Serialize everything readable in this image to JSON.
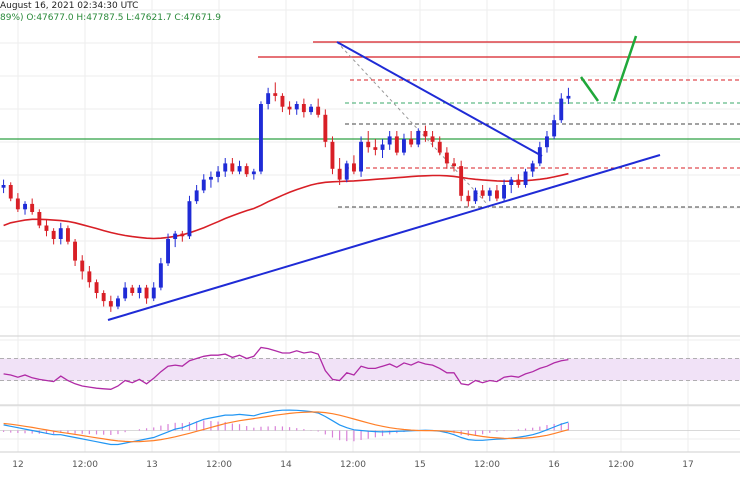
{
  "header": {
    "timestamp": "August 16, 2021 02:34:30 UTC",
    "ohlc": "89%) O:47677.0 H:47787.5 L:47621.7 C:47671.9"
  },
  "colors": {
    "up": "#1f2bd6",
    "down": "#d81f26",
    "ma": "#d81f26",
    "trendline": "#1f2bd6",
    "green_line": "#2ea043",
    "rsi": "#b02aa6",
    "rsi_band": "#f1e2f7",
    "macd": "#2196f3",
    "signal": "#ff7f27",
    "hist": "#d881d8",
    "projection": "#1fa83a"
  },
  "chart_data": {
    "type": "candlestick",
    "x_ticks": [
      "12",
      "12:00",
      "13",
      "12:00",
      "14",
      "12:00",
      "15",
      "12:00",
      "16",
      "12:00",
      "17"
    ],
    "candles": [
      [
        49,
        52,
        47,
        50
      ],
      [
        50,
        51,
        44,
        45
      ],
      [
        45,
        47,
        40,
        41
      ],
      [
        41,
        44,
        39,
        43
      ],
      [
        43,
        45,
        39,
        40
      ],
      [
        40,
        41,
        34,
        35
      ],
      [
        35,
        37,
        31,
        33
      ],
      [
        33,
        34,
        28,
        30
      ],
      [
        30,
        36,
        28,
        34
      ],
      [
        34,
        35,
        28,
        29
      ],
      [
        29,
        30,
        20,
        22
      ],
      [
        22,
        24,
        15,
        18
      ],
      [
        18,
        20,
        12,
        14
      ],
      [
        14,
        15,
        8,
        10
      ],
      [
        10,
        11,
        5,
        7
      ],
      [
        7,
        9,
        3,
        5
      ],
      [
        5,
        9,
        4,
        8
      ],
      [
        8,
        14,
        7,
        12
      ],
      [
        12,
        13,
        9,
        10
      ],
      [
        10,
        13,
        8,
        12
      ],
      [
        12,
        13,
        6,
        8
      ],
      [
        8,
        14,
        7,
        12
      ],
      [
        12,
        23,
        11,
        21
      ],
      [
        21,
        32,
        20,
        30
      ],
      [
        30,
        33,
        27,
        32
      ],
      [
        32,
        33,
        29,
        31
      ],
      [
        31,
        46,
        30,
        44
      ],
      [
        44,
        50,
        43,
        48
      ],
      [
        48,
        54,
        47,
        52
      ],
      [
        52,
        55,
        49,
        53
      ],
      [
        53,
        57,
        51,
        55
      ],
      [
        55,
        60,
        53,
        58
      ],
      [
        58,
        60,
        54,
        55
      ],
      [
        55,
        59,
        54,
        57
      ],
      [
        57,
        58,
        53,
        54
      ],
      [
        54,
        56,
        52,
        55
      ],
      [
        55,
        81,
        54,
        80
      ],
      [
        80,
        86,
        78,
        84
      ],
      [
        84,
        88,
        81,
        83
      ],
      [
        83,
        84,
        77,
        79
      ],
      [
        79,
        81,
        76,
        78
      ],
      [
        78,
        81,
        76,
        80
      ],
      [
        80,
        82,
        75,
        77
      ],
      [
        77,
        80,
        76,
        79
      ],
      [
        79,
        82,
        75,
        76
      ],
      [
        76,
        78,
        64,
        66
      ],
      [
        66,
        68,
        54,
        56
      ],
      [
        56,
        60,
        50,
        52
      ],
      [
        52,
        59,
        51,
        58
      ],
      [
        58,
        61,
        54,
        55
      ],
      [
        55,
        68,
        53,
        66
      ],
      [
        66,
        70,
        62,
        64
      ],
      [
        64,
        67,
        61,
        63
      ],
      [
        63,
        67,
        60,
        65
      ],
      [
        65,
        70,
        63,
        68
      ],
      [
        68,
        70,
        61,
        62
      ],
      [
        62,
        69,
        61,
        67
      ],
      [
        67,
        70,
        64,
        65
      ],
      [
        65,
        71,
        64,
        70
      ],
      [
        70,
        72,
        66,
        68
      ],
      [
        68,
        70,
        64,
        66
      ],
      [
        66,
        68,
        61,
        62
      ],
      [
        62,
        64,
        56,
        58
      ],
      [
        58,
        60,
        55,
        57
      ],
      [
        57,
        59,
        44,
        46
      ],
      [
        46,
        48,
        42,
        44
      ],
      [
        44,
        49,
        43,
        48
      ],
      [
        48,
        50,
        45,
        46
      ],
      [
        46,
        49,
        44,
        48
      ],
      [
        48,
        50,
        44,
        45
      ],
      [
        45,
        52,
        44,
        50
      ],
      [
        50,
        53,
        47,
        52
      ],
      [
        52,
        54,
        49,
        50
      ],
      [
        50,
        56,
        49,
        55
      ],
      [
        55,
        59,
        53,
        58
      ],
      [
        58,
        66,
        57,
        64
      ],
      [
        64,
        70,
        62,
        68
      ],
      [
        68,
        76,
        67,
        74
      ],
      [
        74,
        84,
        73,
        82
      ],
      [
        82,
        86,
        80,
        83
      ]
    ],
    "ma": [
      35,
      36,
      36.5,
      37,
      37.3,
      37.3,
      37.2,
      37,
      36.8,
      36.5,
      36,
      35.3,
      34.6,
      33.9,
      33.1,
      32.4,
      31.8,
      31.3,
      30.9,
      30.6,
      30.3,
      30.2,
      30.3,
      30.6,
      31,
      31.5,
      32.3,
      33.2,
      34.2,
      35.3,
      36.4,
      37.6,
      38.6,
      39.6,
      40.5,
      41.3,
      42.5,
      43.8,
      45,
      46.2,
      47.3,
      48.3,
      49.2,
      50,
      50.6,
      51,
      51.2,
      51.3,
      51.4,
      51.5,
      51.7,
      51.9,
      52.1,
      52.3,
      52.5,
      52.7,
      52.9,
      53.1,
      53.3,
      53.4,
      53.5,
      53.5,
      53.4,
      53.2,
      52.8,
      52.4,
      52.1,
      51.9,
      51.7,
      51.5,
      51.4,
      51.4,
      51.5,
      51.6,
      51.8,
      52.1,
      52.5,
      53,
      53.6,
      54.2
    ],
    "rsi": [
      42,
      40,
      36,
      40,
      35,
      32,
      30,
      28,
      38,
      30,
      24,
      20,
      18,
      16,
      15,
      14,
      20,
      30,
      26,
      32,
      24,
      34,
      46,
      56,
      58,
      56,
      66,
      70,
      74,
      76,
      76,
      78,
      72,
      76,
      70,
      74,
      90,
      88,
      84,
      80,
      80,
      84,
      80,
      82,
      78,
      48,
      32,
      30,
      44,
      40,
      56,
      52,
      52,
      56,
      60,
      54,
      62,
      58,
      64,
      60,
      58,
      52,
      44,
      44,
      24,
      22,
      30,
      26,
      30,
      28,
      36,
      38,
      36,
      42,
      46,
      52,
      56,
      62,
      66,
      68
    ],
    "macd": [
      4,
      3,
      2,
      1,
      0,
      -1,
      -2,
      -3,
      -3,
      -4,
      -5,
      -6,
      -7,
      -8,
      -9,
      -10,
      -10,
      -9,
      -8,
      -7,
      -6,
      -5,
      -3,
      -1,
      1,
      2,
      4,
      6,
      8,
      9,
      10,
      11,
      11,
      11.5,
      11,
      10.5,
      12,
      13,
      14,
      14.5,
      14.6,
      14.4,
      14,
      13.5,
      12.5,
      10,
      7,
      4,
      2,
      0.5,
      0,
      -0.5,
      -0.8,
      -1,
      -0.8,
      -0.6,
      -0.4,
      -0.2,
      0,
      0.2,
      0,
      -0.5,
      -1.5,
      -3,
      -5,
      -6.5,
      -7,
      -7,
      -6.6,
      -6.2,
      -6,
      -5.5,
      -4.8,
      -4,
      -3,
      -1.5,
      0.5,
      2.5,
      4.5,
      6
    ],
    "signal": [
      5,
      4.5,
      3.8,
      3,
      2.2,
      1.3,
      0.4,
      -0.5,
      -1.3,
      -2,
      -2.8,
      -3.6,
      -4.4,
      -5.2,
      -6,
      -6.8,
      -7.4,
      -7.8,
      -8,
      -7.9,
      -7.6,
      -7.2,
      -6.5,
      -5.6,
      -4.5,
      -3.3,
      -2,
      -0.6,
      0.8,
      2.2,
      3.6,
      4.9,
      6,
      7,
      7.8,
      8.5,
      9.3,
      10.1,
      10.9,
      11.6,
      12.2,
      12.7,
      13,
      13.2,
      13.2,
      12.8,
      12,
      10.9,
      9.6,
      8.2,
      6.8,
      5.4,
      4.1,
      3,
      2,
      1.3,
      0.7,
      0.3,
      0,
      -0.1,
      -0.1,
      -0.2,
      -0.5,
      -1,
      -1.7,
      -2.6,
      -3.5,
      -4.3,
      -4.9,
      -5.3,
      -5.6,
      -5.7,
      -5.6,
      -5.4,
      -5,
      -4.3,
      -3.4,
      -2.2,
      -0.8,
      0.6
    ]
  }
}
